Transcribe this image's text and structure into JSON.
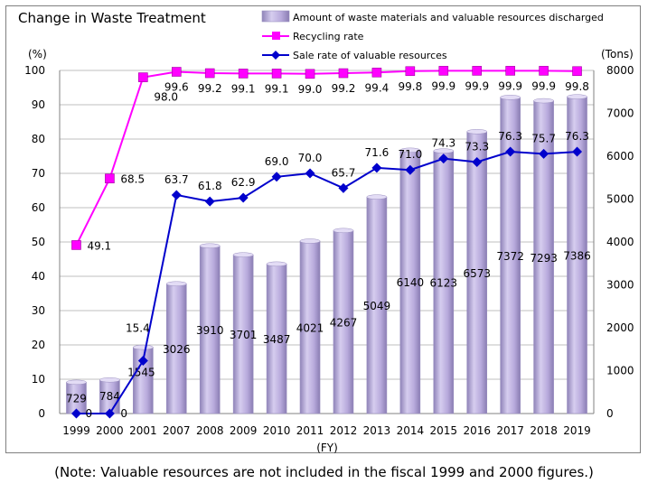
{
  "chart_data": {
    "type": "bar+line",
    "title": "Change in Waste Treatment",
    "categories": [
      "1999",
      "2000",
      "2001",
      "2007",
      "2008",
      "2009",
      "2010",
      "2011",
      "2012",
      "2013",
      "2014",
      "2015",
      "2016",
      "2017",
      "2018",
      "2019"
    ],
    "xlabel": "(FY)",
    "y_left": {
      "label": "(%)",
      "range": [
        0,
        100
      ],
      "ticks": [
        "0",
        "10",
        "20",
        "30",
        "40",
        "50",
        "60",
        "70",
        "80",
        "90",
        "100"
      ]
    },
    "y_right": {
      "label": "(Tons)",
      "range": [
        0,
        8000
      ],
      "ticks": [
        "0",
        "1000",
        "2000",
        "3000",
        "4000",
        "5000",
        "6000",
        "7000",
        "8000"
      ]
    },
    "legend_position": "top-right",
    "series": [
      {
        "name": "Amount of waste materials and valuable resources discharged",
        "type": "bar",
        "axis": "right",
        "color": "#b4a7d6",
        "values": [
          729,
          784,
          1545,
          3026,
          3910,
          3701,
          3487,
          4021,
          4267,
          5049,
          6140,
          6123,
          6573,
          7372,
          7293,
          7386
        ],
        "labels": [
          "729",
          "784",
          "1545",
          "3026",
          "3910",
          "3701",
          "3487",
          "4021",
          "4267",
          "5049",
          "6140",
          "6123",
          "6573",
          "7372",
          "7293",
          "7386"
        ]
      },
      {
        "name": "Recycling rate",
        "type": "line",
        "axis": "left",
        "color": "#ff00ff",
        "values": [
          49.1,
          68.5,
          98.0,
          99.6,
          99.2,
          99.1,
          99.1,
          99.0,
          99.2,
          99.4,
          99.8,
          99.9,
          99.9,
          99.9,
          99.9,
          99.8
        ],
        "labels": [
          "49.1",
          "68.5",
          "98.0",
          "99.6",
          "99.2",
          "99.1",
          "99.1",
          "99.0",
          "99.2",
          "99.4",
          "99.8",
          "99.9",
          "99.9",
          "99.9",
          "99.9",
          "99.8"
        ]
      },
      {
        "name": "Sale rate of valuable resources",
        "type": "line",
        "axis": "left",
        "color": "#0000cc",
        "values": [
          0,
          0,
          15.4,
          63.7,
          61.8,
          62.9,
          69.0,
          70.0,
          65.7,
          71.6,
          71.0,
          74.3,
          73.3,
          76.3,
          75.7,
          76.3
        ],
        "labels": [
          "0",
          "0",
          "15.4",
          "63.7",
          "61.8",
          "62.9",
          "69.0",
          "70.0",
          "65.7",
          "71.6",
          "71.0",
          "74.3",
          "73.3",
          "76.3",
          "75.7",
          "76.3"
        ]
      }
    ],
    "grid": true
  },
  "note": "(Note: Valuable resources are not included in the fiscal 1999 and 2000 figures.)"
}
